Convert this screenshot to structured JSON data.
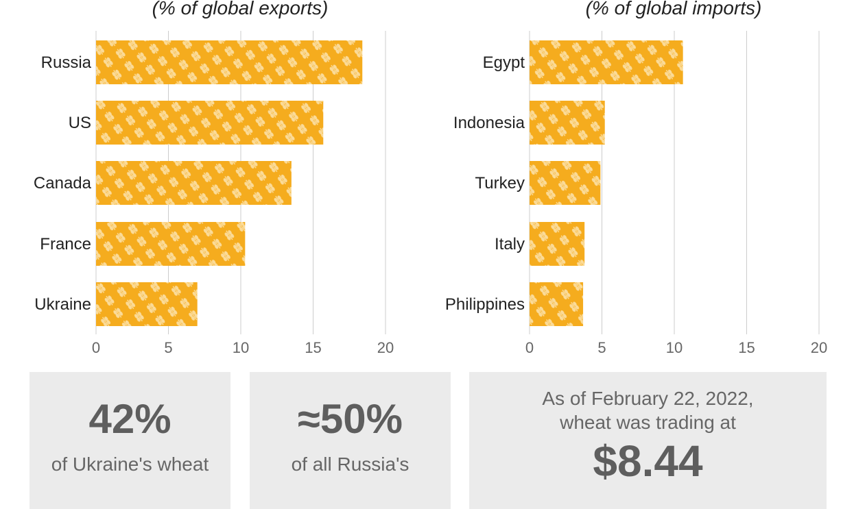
{
  "chart_data": [
    {
      "type": "bar",
      "orientation": "horizontal",
      "title": "(% of global exports)",
      "categories": [
        "Russia",
        "US",
        "Canada",
        "France",
        "Ukraine"
      ],
      "values": [
        18.4,
        15.7,
        13.5,
        10.3,
        7.0
      ],
      "xlim": [
        0,
        20
      ],
      "xticks": [
        0,
        5,
        10,
        15,
        20
      ],
      "grid": true,
      "bar_color": "#f5ac1e"
    },
    {
      "type": "bar",
      "orientation": "horizontal",
      "title": "(% of global imports)",
      "categories": [
        "Egypt",
        "Indonesia",
        "Turkey",
        "Italy",
        "Philippines"
      ],
      "values": [
        10.6,
        5.2,
        4.9,
        3.8,
        3.7
      ],
      "xlim": [
        0,
        20
      ],
      "xticks": [
        0,
        5,
        10,
        15,
        20
      ],
      "grid": true,
      "bar_color": "#f5ac1e"
    }
  ],
  "stats": {
    "stat1": {
      "value": "42%",
      "text": "of Ukraine's wheat"
    },
    "stat2": {
      "value": "≈50%",
      "text": "of all Russia's"
    },
    "stat3": {
      "intro1": "As of February 22, 2022,",
      "intro2": "wheat was trading at",
      "value": "$8.44"
    }
  },
  "colors": {
    "bar": "#f5ac1e",
    "grid": "#cccccc",
    "tick": "#666666",
    "stat_bg": "#ebebeb"
  }
}
